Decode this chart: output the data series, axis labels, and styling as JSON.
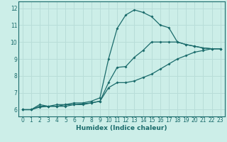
{
  "xlabel": "Humidex (Indice chaleur)",
  "ylabel": "",
  "bg_color": "#cceee8",
  "grid_color": "#b8ddd8",
  "line_color": "#1a6b6b",
  "xlim": [
    -0.5,
    23.5
  ],
  "ylim": [
    5.6,
    12.4
  ],
  "xticks": [
    0,
    1,
    2,
    3,
    4,
    5,
    6,
    7,
    8,
    9,
    10,
    11,
    12,
    13,
    14,
    15,
    16,
    17,
    18,
    19,
    20,
    21,
    22,
    23
  ],
  "yticks": [
    6,
    7,
    8,
    9,
    10,
    11,
    12
  ],
  "series": [
    {
      "x": [
        0,
        1,
        2,
        3,
        4,
        5,
        6,
        7,
        8,
        9,
        10,
        11,
        12,
        13,
        14,
        15,
        16,
        17,
        18,
        19,
        20,
        21,
        22,
        23
      ],
      "y": [
        6.0,
        6.0,
        6.3,
        6.2,
        6.3,
        6.3,
        6.4,
        6.4,
        6.5,
        6.7,
        9.0,
        10.8,
        11.6,
        11.9,
        11.75,
        11.5,
        11.0,
        10.85,
        10.0,
        9.85,
        9.75,
        9.65,
        9.6,
        9.6
      ]
    },
    {
      "x": [
        0,
        1,
        2,
        3,
        4,
        5,
        6,
        7,
        8,
        9,
        10,
        11,
        12,
        13,
        14,
        15,
        16,
        17,
        18,
        19,
        20,
        21,
        22,
        23
      ],
      "y": [
        6.0,
        6.0,
        6.2,
        6.2,
        6.2,
        6.3,
        6.3,
        6.35,
        6.4,
        6.5,
        7.6,
        8.5,
        8.55,
        9.1,
        9.5,
        10.0,
        10.0,
        10.0,
        10.0,
        9.85,
        9.75,
        9.65,
        9.6,
        9.6
      ]
    },
    {
      "x": [
        0,
        1,
        2,
        3,
        4,
        5,
        6,
        7,
        8,
        9,
        10,
        11,
        12,
        13,
        14,
        15,
        16,
        17,
        18,
        19,
        20,
        21,
        22,
        23
      ],
      "y": [
        6.0,
        6.0,
        6.15,
        6.2,
        6.2,
        6.2,
        6.3,
        6.3,
        6.4,
        6.5,
        7.3,
        7.6,
        7.6,
        7.7,
        7.9,
        8.1,
        8.4,
        8.7,
        9.0,
        9.2,
        9.4,
        9.5,
        9.6,
        9.6
      ]
    }
  ]
}
